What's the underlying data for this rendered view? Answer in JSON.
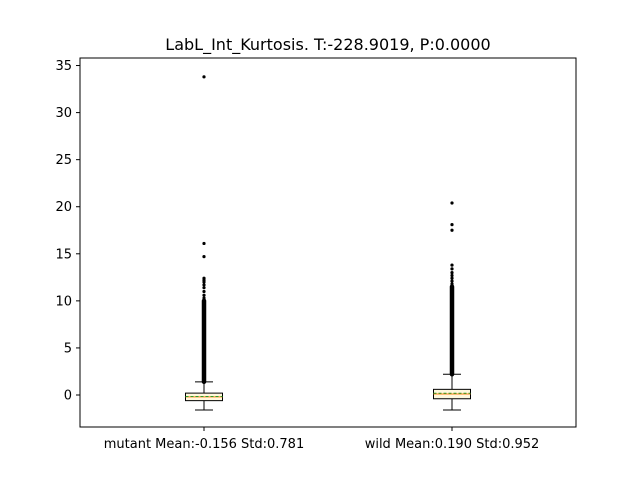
{
  "chart_data": {
    "type": "box",
    "title": "LabL_Int_Kurtosis. T:-228.9019, P:0.0000",
    "xlabel": "",
    "ylabel": "",
    "ylim": [
      -3.4,
      35.8
    ],
    "yticks": [
      0,
      5,
      10,
      15,
      20,
      25,
      30,
      35
    ],
    "grid": false,
    "categories": [
      "mutant Mean:-0.156 Std:0.781",
      "wild Mean:0.190 Std:0.952"
    ],
    "boxes": [
      {
        "whisker_low": -1.6,
        "q1": -0.6,
        "median": -0.2,
        "mean": -0.156,
        "q3": 0.2,
        "whisker_high": 1.4,
        "outliers_dense_range": [
          1.4,
          10.0
        ],
        "outliers": [
          10.3,
          10.6,
          11.0,
          11.4,
          11.7,
          12.0,
          12.2,
          12.4,
          14.7,
          16.1,
          33.8
        ]
      },
      {
        "whisker_low": -1.6,
        "q1": -0.4,
        "median": 0.1,
        "mean": 0.19,
        "q3": 0.6,
        "whisker_high": 2.2,
        "outliers_dense_range": [
          2.2,
          11.5
        ],
        "outliers": [
          11.8,
          12.1,
          12.4,
          12.7,
          13.0,
          13.4,
          13.8,
          17.5,
          18.1,
          20.4
        ]
      }
    ],
    "colors": {
      "box_fill": "#fff8dc",
      "median": "#ff7f0e",
      "mean": "#2ca02c",
      "outlier": "#000000"
    }
  }
}
